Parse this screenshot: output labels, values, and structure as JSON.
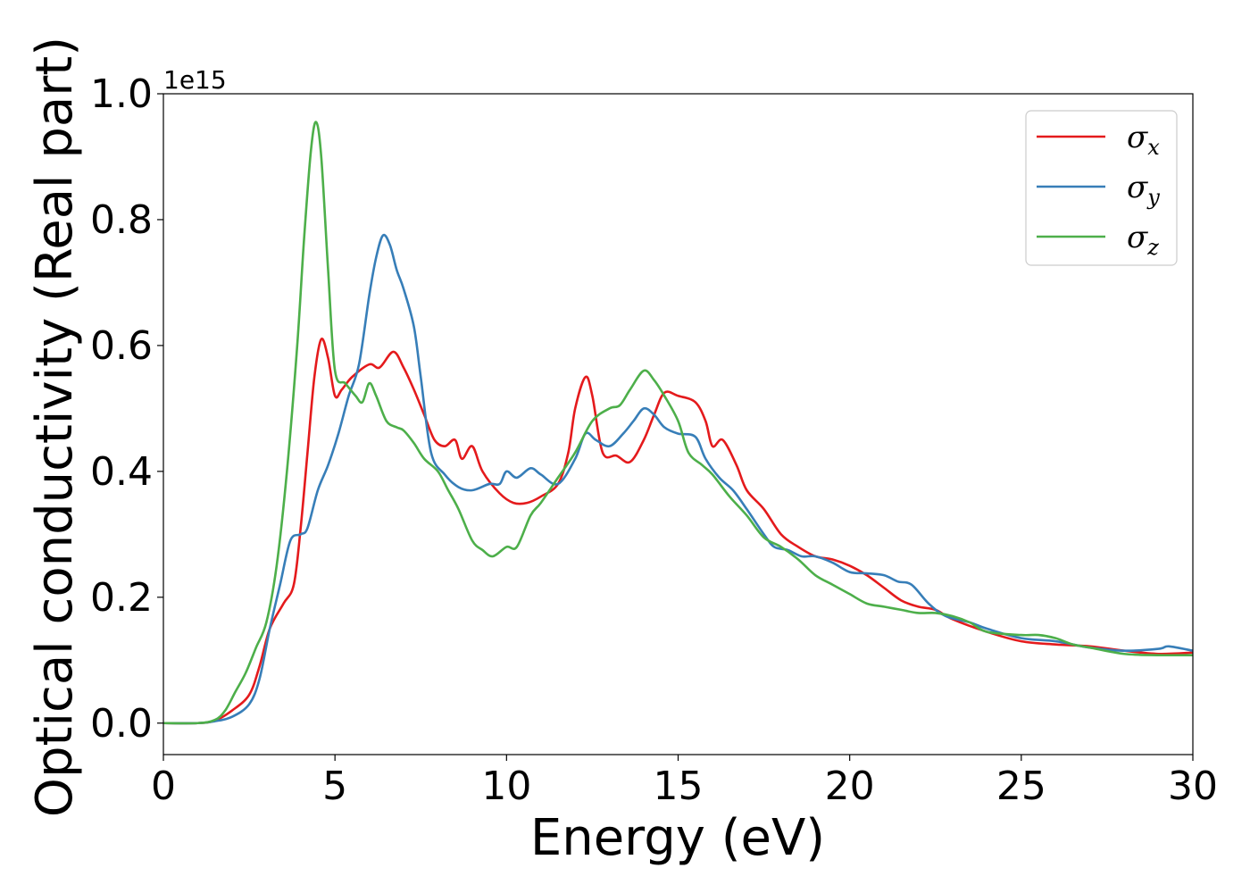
{
  "chart_data": {
    "type": "line",
    "title": "",
    "xlabel": "Energy (eV)",
    "ylabel": "Optical conductivity (Real part)",
    "y_offset_label": "1e15",
    "xlim": [
      0,
      30
    ],
    "ylim": [
      -0.05,
      1.0
    ],
    "xticks": [
      0,
      5,
      10,
      15,
      20,
      25,
      30
    ],
    "yticks": [
      0.0,
      0.2,
      0.4,
      0.6,
      0.8,
      1.0
    ],
    "xtick_labels": [
      "0",
      "5",
      "10",
      "15",
      "20",
      "25",
      "30"
    ],
    "ytick_labels": [
      "0.0",
      "0.2",
      "0.4",
      "0.6",
      "0.8",
      "1.0"
    ],
    "grid": false,
    "legend_position": "top-right",
    "series": [
      {
        "name": "σx",
        "legend_base": "σ",
        "legend_sub": "x",
        "color": "#e41a1c",
        "points": [
          [
            0,
            0.0
          ],
          [
            1,
            0.0
          ],
          [
            1.5,
            0.004
          ],
          [
            2,
            0.02
          ],
          [
            2.5,
            0.045
          ],
          [
            2.8,
            0.09
          ],
          [
            3.1,
            0.15
          ],
          [
            3.5,
            0.19
          ],
          [
            3.8,
            0.22
          ],
          [
            4.0,
            0.31
          ],
          [
            4.2,
            0.43
          ],
          [
            4.4,
            0.55
          ],
          [
            4.6,
            0.61
          ],
          [
            4.8,
            0.58
          ],
          [
            5.0,
            0.52
          ],
          [
            5.2,
            0.53
          ],
          [
            5.5,
            0.55
          ],
          [
            6.0,
            0.57
          ],
          [
            6.3,
            0.565
          ],
          [
            6.7,
            0.59
          ],
          [
            7.0,
            0.565
          ],
          [
            7.3,
            0.53
          ],
          [
            7.6,
            0.49
          ],
          [
            7.9,
            0.45
          ],
          [
            8.2,
            0.44
          ],
          [
            8.5,
            0.45
          ],
          [
            8.7,
            0.42
          ],
          [
            9.0,
            0.44
          ],
          [
            9.3,
            0.4
          ],
          [
            9.8,
            0.365
          ],
          [
            10.2,
            0.35
          ],
          [
            10.6,
            0.35
          ],
          [
            11.0,
            0.36
          ],
          [
            11.5,
            0.38
          ],
          [
            11.8,
            0.43
          ],
          [
            12.0,
            0.5
          ],
          [
            12.3,
            0.55
          ],
          [
            12.5,
            0.52
          ],
          [
            12.8,
            0.43
          ],
          [
            13.2,
            0.425
          ],
          [
            13.6,
            0.415
          ],
          [
            14.0,
            0.45
          ],
          [
            14.3,
            0.49
          ],
          [
            14.6,
            0.525
          ],
          [
            15.0,
            0.52
          ],
          [
            15.5,
            0.51
          ],
          [
            15.8,
            0.48
          ],
          [
            16.0,
            0.44
          ],
          [
            16.3,
            0.45
          ],
          [
            16.7,
            0.41
          ],
          [
            17.0,
            0.37
          ],
          [
            17.5,
            0.34
          ],
          [
            18.0,
            0.3
          ],
          [
            18.5,
            0.28
          ],
          [
            19.0,
            0.265
          ],
          [
            19.5,
            0.26
          ],
          [
            20.0,
            0.25
          ],
          [
            20.5,
            0.235
          ],
          [
            21.0,
            0.215
          ],
          [
            21.5,
            0.195
          ],
          [
            22.0,
            0.185
          ],
          [
            22.5,
            0.18
          ],
          [
            23.0,
            0.165
          ],
          [
            24.0,
            0.145
          ],
          [
            25.0,
            0.13
          ],
          [
            26.0,
            0.125
          ],
          [
            27.0,
            0.122
          ],
          [
            28.0,
            0.115
          ],
          [
            29.0,
            0.11
          ],
          [
            30.0,
            0.112
          ]
        ]
      },
      {
        "name": "σy",
        "legend_base": "σ",
        "legend_sub": "y",
        "color": "#377eb8",
        "points": [
          [
            0,
            0.0
          ],
          [
            1,
            0.0
          ],
          [
            1.5,
            0.003
          ],
          [
            2,
            0.01
          ],
          [
            2.5,
            0.03
          ],
          [
            2.8,
            0.07
          ],
          [
            3.1,
            0.15
          ],
          [
            3.4,
            0.22
          ],
          [
            3.7,
            0.29
          ],
          [
            4.0,
            0.3
          ],
          [
            4.2,
            0.31
          ],
          [
            4.5,
            0.37
          ],
          [
            4.8,
            0.41
          ],
          [
            5.1,
            0.46
          ],
          [
            5.4,
            0.52
          ],
          [
            5.7,
            0.57
          ],
          [
            6.0,
            0.68
          ],
          [
            6.2,
            0.74
          ],
          [
            6.4,
            0.775
          ],
          [
            6.6,
            0.76
          ],
          [
            6.8,
            0.72
          ],
          [
            7.0,
            0.69
          ],
          [
            7.3,
            0.63
          ],
          [
            7.5,
            0.55
          ],
          [
            7.8,
            0.43
          ],
          [
            8.2,
            0.395
          ],
          [
            8.6,
            0.375
          ],
          [
            9.0,
            0.37
          ],
          [
            9.5,
            0.38
          ],
          [
            9.8,
            0.38
          ],
          [
            10.0,
            0.4
          ],
          [
            10.3,
            0.39
          ],
          [
            10.7,
            0.405
          ],
          [
            11.0,
            0.395
          ],
          [
            11.5,
            0.38
          ],
          [
            12.0,
            0.42
          ],
          [
            12.3,
            0.46
          ],
          [
            12.6,
            0.45
          ],
          [
            13.0,
            0.44
          ],
          [
            13.4,
            0.46
          ],
          [
            13.7,
            0.48
          ],
          [
            14.0,
            0.5
          ],
          [
            14.3,
            0.49
          ],
          [
            14.6,
            0.47
          ],
          [
            15.0,
            0.46
          ],
          [
            15.5,
            0.455
          ],
          [
            15.8,
            0.42
          ],
          [
            16.2,
            0.39
          ],
          [
            16.6,
            0.37
          ],
          [
            17.0,
            0.34
          ],
          [
            17.5,
            0.3
          ],
          [
            17.8,
            0.28
          ],
          [
            18.2,
            0.275
          ],
          [
            18.6,
            0.265
          ],
          [
            19.0,
            0.265
          ],
          [
            19.5,
            0.255
          ],
          [
            20.0,
            0.24
          ],
          [
            20.5,
            0.238
          ],
          [
            21.0,
            0.235
          ],
          [
            21.4,
            0.225
          ],
          [
            21.8,
            0.22
          ],
          [
            22.3,
            0.19
          ],
          [
            22.8,
            0.17
          ],
          [
            23.5,
            0.16
          ],
          [
            24.0,
            0.15
          ],
          [
            25.0,
            0.135
          ],
          [
            26.0,
            0.13
          ],
          [
            27.0,
            0.12
          ],
          [
            28.0,
            0.115
          ],
          [
            29.0,
            0.118
          ],
          [
            29.3,
            0.122
          ],
          [
            30.0,
            0.115
          ]
        ]
      },
      {
        "name": "σz",
        "legend_base": "σ",
        "legend_sub": "z",
        "color": "#4daf4a",
        "points": [
          [
            0,
            0.0
          ],
          [
            1,
            0.0
          ],
          [
            1.5,
            0.005
          ],
          [
            1.8,
            0.02
          ],
          [
            2.1,
            0.05
          ],
          [
            2.4,
            0.08
          ],
          [
            2.7,
            0.12
          ],
          [
            3.0,
            0.16
          ],
          [
            3.3,
            0.25
          ],
          [
            3.6,
            0.4
          ],
          [
            3.9,
            0.6
          ],
          [
            4.1,
            0.77
          ],
          [
            4.3,
            0.91
          ],
          [
            4.45,
            0.955
          ],
          [
            4.6,
            0.9
          ],
          [
            4.8,
            0.72
          ],
          [
            5.0,
            0.56
          ],
          [
            5.3,
            0.54
          ],
          [
            5.6,
            0.52
          ],
          [
            5.8,
            0.51
          ],
          [
            6.0,
            0.54
          ],
          [
            6.2,
            0.52
          ],
          [
            6.5,
            0.48
          ],
          [
            6.8,
            0.47
          ],
          [
            7.0,
            0.465
          ],
          [
            7.3,
            0.445
          ],
          [
            7.6,
            0.42
          ],
          [
            8.0,
            0.4
          ],
          [
            8.3,
            0.37
          ],
          [
            8.6,
            0.34
          ],
          [
            9.0,
            0.29
          ],
          [
            9.3,
            0.275
          ],
          [
            9.6,
            0.265
          ],
          [
            10.0,
            0.28
          ],
          [
            10.3,
            0.28
          ],
          [
            10.7,
            0.33
          ],
          [
            11.0,
            0.35
          ],
          [
            11.5,
            0.39
          ],
          [
            12.0,
            0.43
          ],
          [
            12.5,
            0.48
          ],
          [
            13.0,
            0.5
          ],
          [
            13.3,
            0.505
          ],
          [
            13.6,
            0.53
          ],
          [
            14.0,
            0.56
          ],
          [
            14.3,
            0.545
          ],
          [
            14.6,
            0.52
          ],
          [
            15.0,
            0.48
          ],
          [
            15.3,
            0.43
          ],
          [
            15.7,
            0.41
          ],
          [
            16.0,
            0.395
          ],
          [
            16.5,
            0.36
          ],
          [
            17.0,
            0.33
          ],
          [
            17.5,
            0.295
          ],
          [
            18.0,
            0.28
          ],
          [
            18.5,
            0.26
          ],
          [
            19.0,
            0.235
          ],
          [
            19.5,
            0.22
          ],
          [
            20.0,
            0.205
          ],
          [
            20.5,
            0.19
          ],
          [
            21.0,
            0.185
          ],
          [
            21.5,
            0.18
          ],
          [
            22.0,
            0.175
          ],
          [
            22.5,
            0.175
          ],
          [
            23.0,
            0.17
          ],
          [
            23.5,
            0.16
          ],
          [
            24.0,
            0.145
          ],
          [
            25.0,
            0.14
          ],
          [
            25.5,
            0.14
          ],
          [
            26.0,
            0.135
          ],
          [
            26.5,
            0.125
          ],
          [
            27.0,
            0.12
          ],
          [
            28.0,
            0.11
          ],
          [
            29.0,
            0.108
          ],
          [
            30.0,
            0.108
          ]
        ]
      }
    ]
  }
}
